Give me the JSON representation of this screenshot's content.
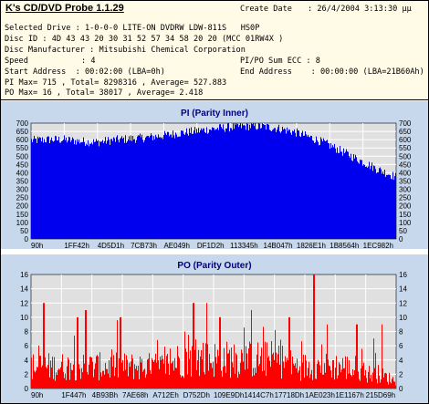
{
  "header": {
    "app_title": "K's CD/DVD Probe 1.1.29",
    "create_date_label": "Create Date",
    "create_date_value": ": 26/4/2004 3:13:30 μμ",
    "selected_drive": "Selected Drive : 1-0-0-0 LITE-ON DVDRW LDW-811S   HS0P",
    "disc_id": "Disc ID : 4D 43 43 20 30 31 52 57 34 58 20 20 (MCC 01RW4X )",
    "disc_manufacturer": "Disc Manufacturer : Mitsubishi Chemical Corporation",
    "speed_label": "Speed",
    "speed_value": ": 4",
    "pipo_label": "PI/PO Sum ECC : 8",
    "start_address": "Start Address  : 00:02:00 (LBA=0h)",
    "end_address": "End Address    : 00:00:00 (LBA=21B60Ah)",
    "pi_stats": "PI Max= 715 , Total= 8298316 , Average= 527.883",
    "po_stats": "PO Max= 16 , Total= 38017 , Average= 2.418"
  },
  "colors": {
    "panel_bg": "#c8d8ec",
    "plot_bg": "#e0e0e0",
    "pi_fill": "#0000ee",
    "po_fill": "#ff0000",
    "grid": "#ffffff",
    "title": "#000080"
  },
  "chart_data": [
    {
      "type": "area",
      "title": "PI (Parity Inner)",
      "xlabel": "",
      "ylabel": "",
      "ylim": [
        0,
        700
      ],
      "yticks": [
        0,
        50,
        100,
        150,
        200,
        250,
        300,
        350,
        400,
        450,
        500,
        550,
        600,
        650,
        700
      ],
      "xtick_labels": [
        "90h",
        "1FF42h",
        "4D5D1h",
        "7CB73h",
        "AE049h",
        "DF1D2h",
        "113345h",
        "14B047h",
        "1826E1h",
        "1B8564h",
        "1EC982h"
      ],
      "x_start": 0,
      "x_end": 2209290,
      "x": [
        0,
        100000,
        200000,
        300000,
        400000,
        500000,
        600000,
        700000,
        800000,
        900000,
        1000000,
        1100000,
        1200000,
        1300000,
        1400000,
        1500000,
        1600000,
        1700000,
        1800000,
        1900000,
        2000000,
        2100000,
        2209290
      ],
      "values": [
        595,
        600,
        600,
        590,
        585,
        598,
        605,
        612,
        625,
        640,
        652,
        665,
        675,
        682,
        680,
        668,
        645,
        610,
        570,
        520,
        470,
        420,
        375
      ]
    },
    {
      "type": "bar",
      "title": "PO (Parity Outer)",
      "xlabel": "",
      "ylabel": "",
      "ylim": [
        0,
        16
      ],
      "yticks": [
        0,
        2,
        4,
        6,
        8,
        10,
        12,
        14,
        16
      ],
      "xtick_labels": [
        "90h",
        "1F447h",
        "4B93Bh",
        "7AE68h",
        "A712Eh",
        "D752Dh",
        "109E9Dh",
        "1414C7h",
        "17718Dh",
        "1AE023h",
        "1E1167h",
        "215D69h"
      ],
      "x_start": 0,
      "x_end": 2209290,
      "x": [
        0,
        100000,
        200000,
        300000,
        400000,
        500000,
        600000,
        700000,
        800000,
        900000,
        1000000,
        1100000,
        1200000,
        1300000,
        1400000,
        1500000,
        1600000,
        1700000,
        1800000,
        1900000,
        2000000,
        2100000,
        2209290
      ],
      "values": [
        3,
        3,
        3,
        3,
        3,
        3,
        3,
        3,
        3,
        4,
        4,
        4,
        4,
        4,
        4,
        4,
        3,
        3,
        3,
        3,
        2,
        2,
        1
      ],
      "peaks": [
        {
          "x": 75000,
          "value": 12
        },
        {
          "x": 280000,
          "value": 10
        },
        {
          "x": 330000,
          "value": 11
        },
        {
          "x": 540000,
          "value": 10
        },
        {
          "x": 980000,
          "value": 12
        },
        {
          "x": 1060000,
          "value": 12
        },
        {
          "x": 1140000,
          "value": 10
        },
        {
          "x": 1330000,
          "value": 11
        },
        {
          "x": 1560000,
          "value": 10
        },
        {
          "x": 1710000,
          "value": 16
        },
        {
          "x": 1790000,
          "value": 9
        },
        {
          "x": 1970000,
          "value": 9
        },
        {
          "x": 2120000,
          "value": 9
        }
      ]
    }
  ]
}
